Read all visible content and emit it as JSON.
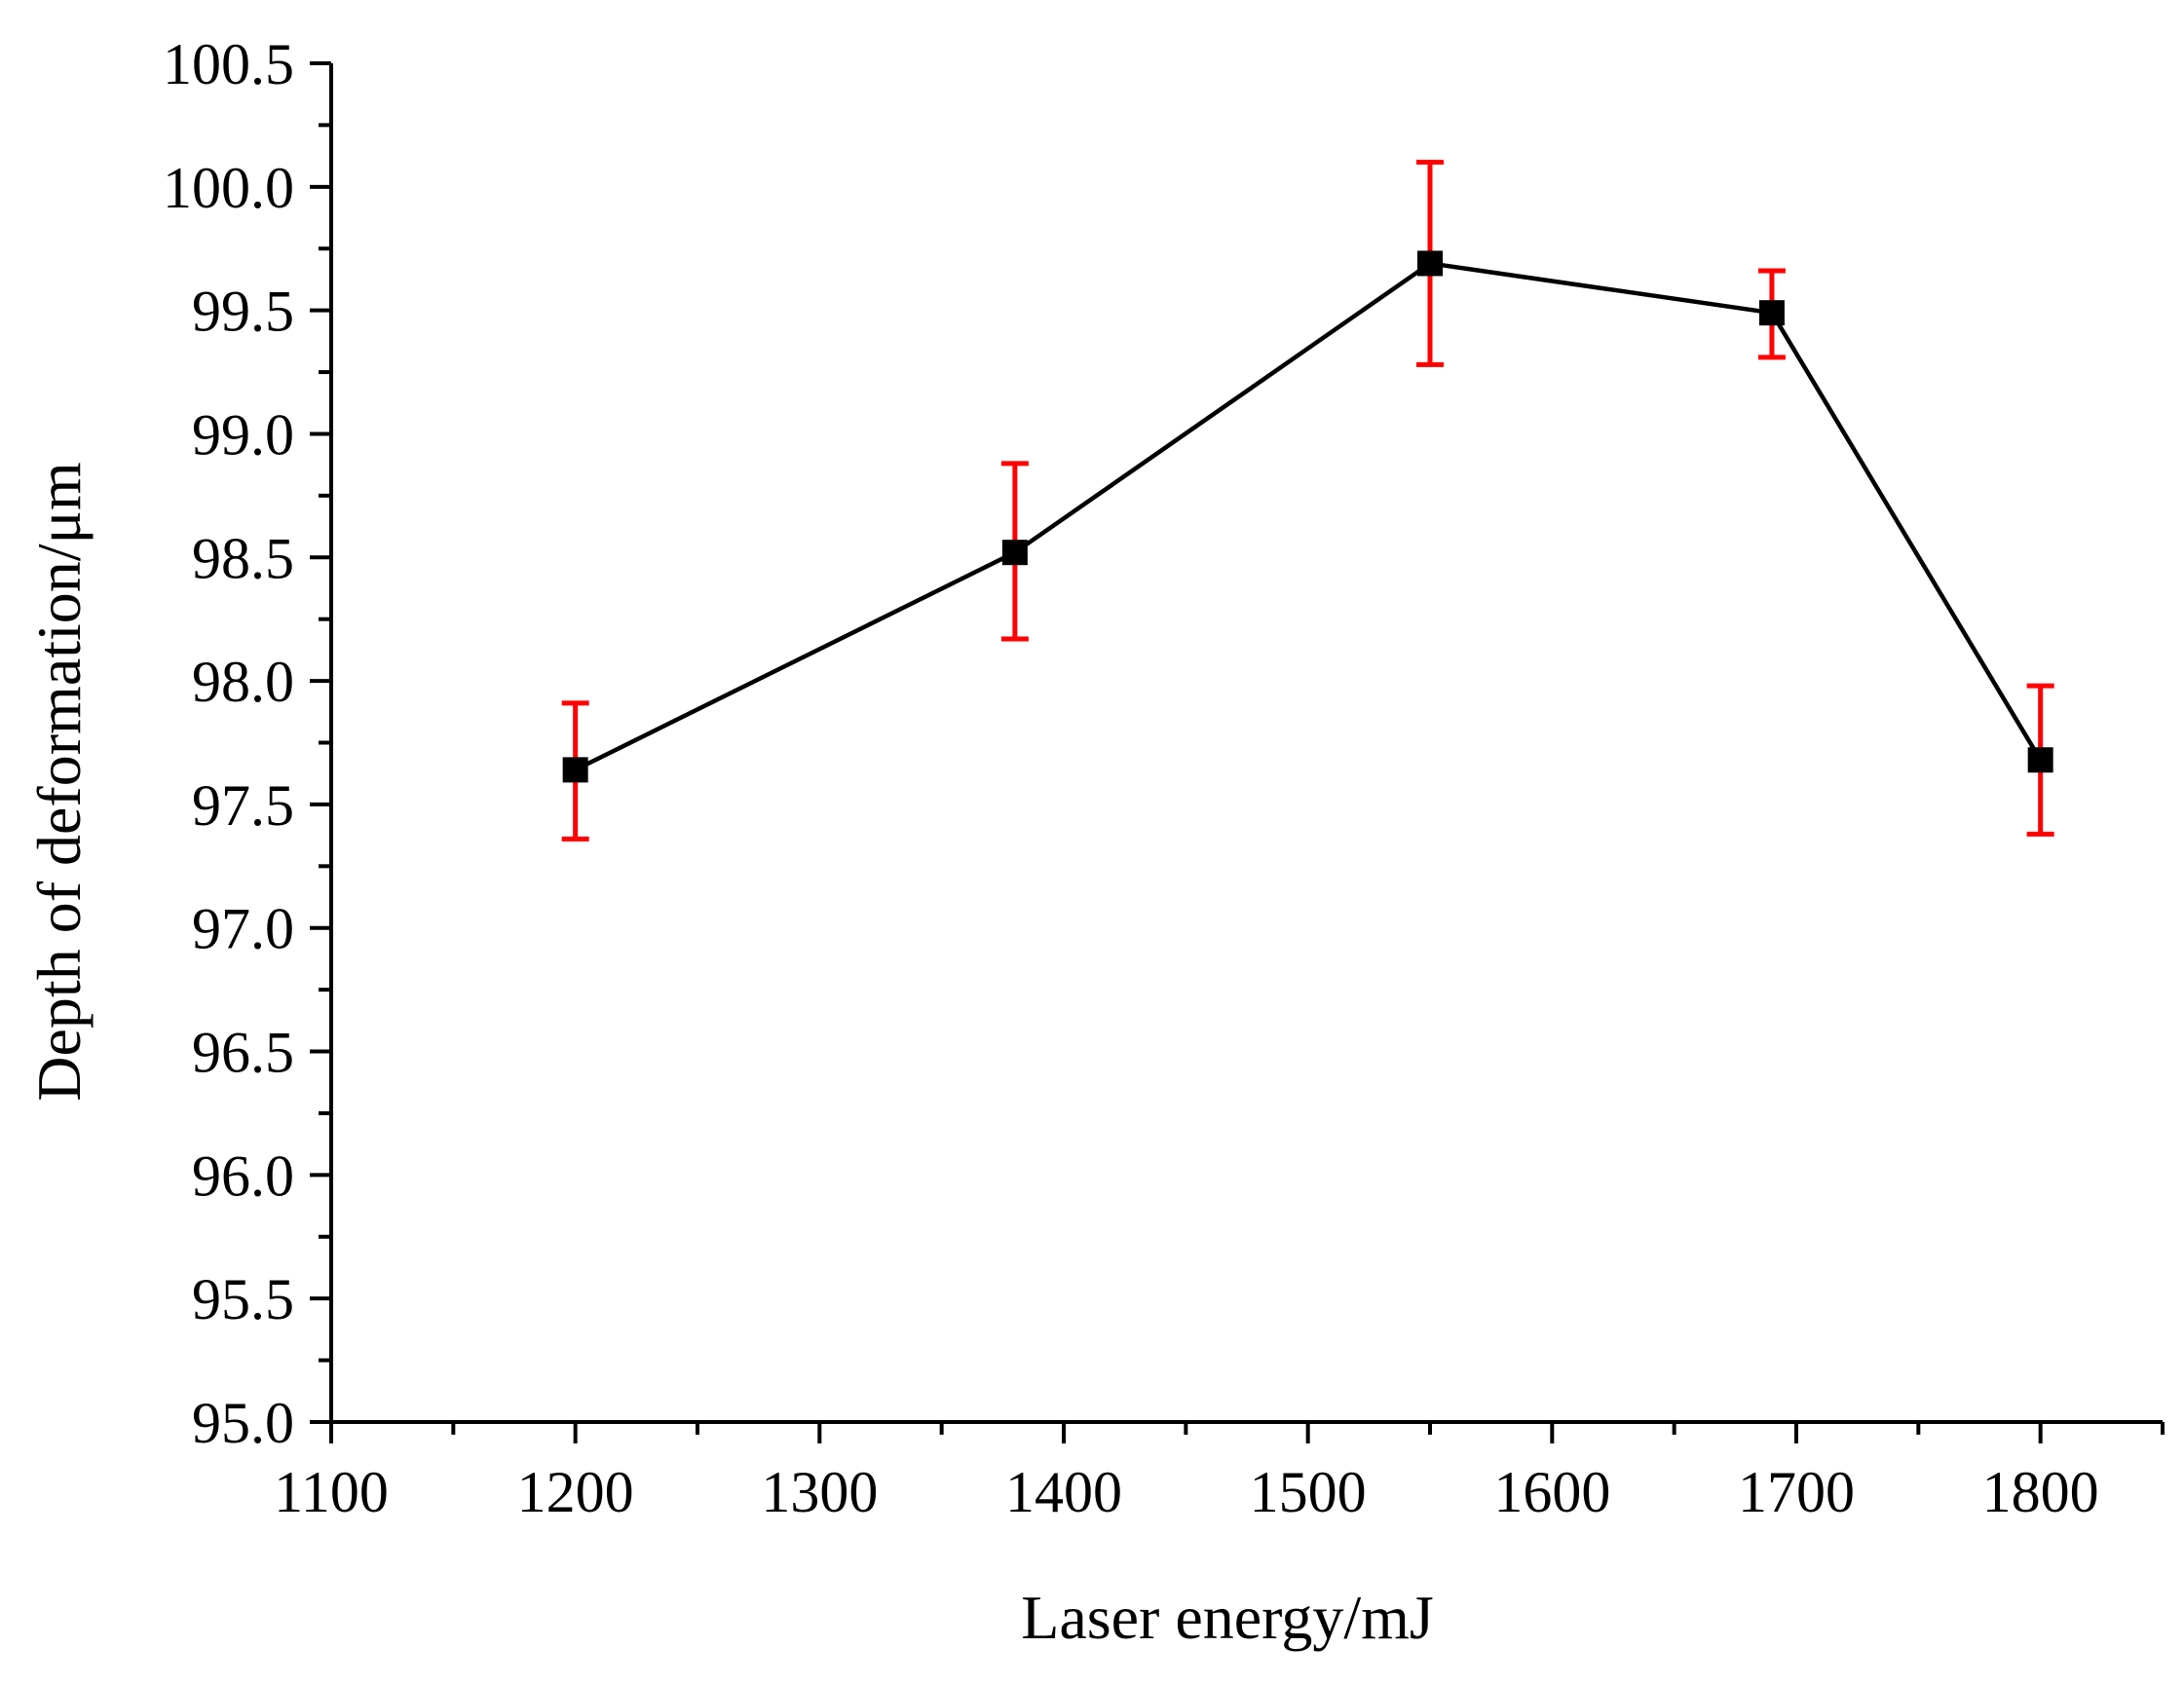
{
  "chart_data": {
    "type": "scatter",
    "title": "",
    "xlabel": "Laser energy/mJ",
    "ylabel": "Depth of deformation/μm",
    "xlim": [
      1100,
      1850
    ],
    "ylim": [
      95.0,
      100.5
    ],
    "x_ticks": [
      1100,
      1200,
      1300,
      1400,
      1500,
      1600,
      1700,
      1800
    ],
    "y_ticks": [
      "95.0",
      "95.5",
      "96.0",
      "96.5",
      "97.0",
      "97.5",
      "98.0",
      "98.5",
      "99.0",
      "99.5",
      "100.0",
      "100.5"
    ],
    "grid": false,
    "legend": "none",
    "series": [
      {
        "line_color": "#000000",
        "marker": "square",
        "marker_color": "#000000",
        "error_bar_color": "#ff0000",
        "points": [
          {
            "x": 1200,
            "y": 97.64,
            "err_low": 97.36,
            "err_high": 97.91
          },
          {
            "x": 1380,
            "y": 98.52,
            "err_low": 98.17,
            "err_high": 98.88
          },
          {
            "x": 1550,
            "y": 99.69,
            "err_low": 99.28,
            "err_high": 100.1
          },
          {
            "x": 1690,
            "y": 99.49,
            "err_low": 99.31,
            "err_high": 99.66
          },
          {
            "x": 1800,
            "y": 97.68,
            "err_low": 97.38,
            "err_high": 97.98
          }
        ]
      }
    ]
  }
}
